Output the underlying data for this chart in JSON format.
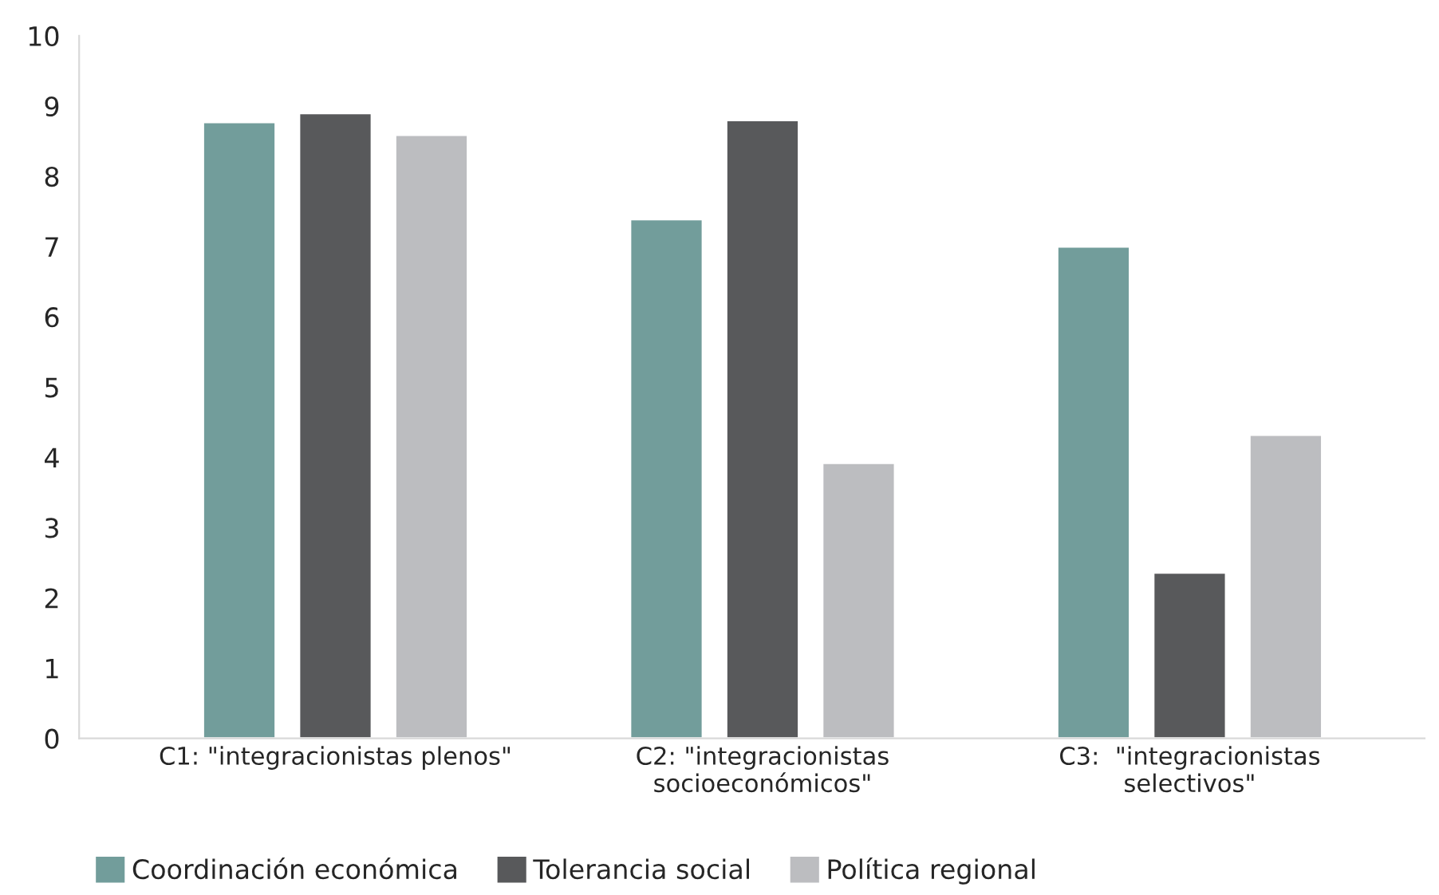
{
  "chart_data": {
    "type": "bar",
    "categories": [
      "C1: \"integracionistas plenos\"",
      "C2: \"integracionistas\nsocioeconómicos\"",
      "C3:  \"integracionistas\nselectivos\""
    ],
    "series": [
      {
        "name": "Coordinación económica",
        "color": "#729d9b",
        "values": [
          8.77,
          7.39,
          7.0
        ]
      },
      {
        "name": "Tolerancia social",
        "color": "#58595b",
        "values": [
          8.9,
          8.8,
          2.36
        ]
      },
      {
        "name": "Política regional",
        "color": "#bcbdc0",
        "values": [
          8.59,
          3.92,
          4.32
        ]
      }
    ],
    "ylim": [
      0,
      10
    ],
    "yticks": [
      0,
      1,
      2,
      3,
      4,
      5,
      6,
      7,
      8,
      9,
      10
    ],
    "grid": false,
    "legend": "bottom"
  }
}
